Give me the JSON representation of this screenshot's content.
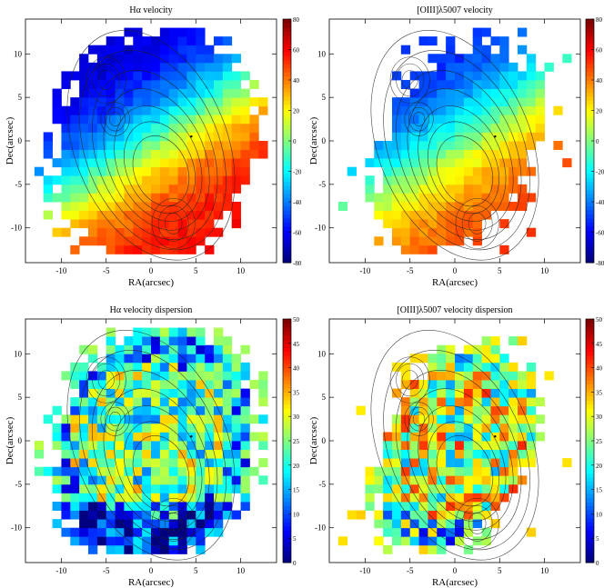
{
  "figure": {
    "description_panels": 4
  },
  "chart_data": [
    {
      "type": "heatmap",
      "title": "Hα velocity",
      "xlabel": "RA(arcsec)",
      "ylabel": "Dec(arcsec)",
      "xlim": [
        -14,
        14
      ],
      "ylim": [
        -14,
        14
      ],
      "xticks": [
        -10,
        -5,
        0,
        5,
        10
      ],
      "yticks": [
        -10,
        -5,
        0,
        5,
        10
      ],
      "colorbar": {
        "min": -80,
        "max": 80,
        "ticks": [
          -80,
          -60,
          -40,
          -20,
          0,
          20,
          40,
          60,
          80
        ]
      },
      "field": {
        "model": "rotation",
        "amplitude": 65,
        "coverage": "full"
      },
      "contours": true
    },
    {
      "type": "heatmap",
      "title": "[OIII]λ5007 velocity",
      "xlabel": "RA(arcsec)",
      "ylabel": "Dec(arcsec)",
      "xlim": [
        -14,
        14
      ],
      "ylim": [
        -14,
        14
      ],
      "xticks": [
        -10,
        -5,
        0,
        5,
        10
      ],
      "yticks": [
        -10,
        -5,
        0,
        5,
        10
      ],
      "colorbar": {
        "min": -80,
        "max": 80,
        "ticks": [
          -80,
          -60,
          -40,
          -20,
          0,
          20,
          40,
          60,
          80
        ]
      },
      "field": {
        "model": "rotation",
        "amplitude": 55,
        "coverage": "partial"
      },
      "contours": true
    },
    {
      "type": "heatmap",
      "title": "Hα velocity dispersion",
      "xlabel": "RA(arcsec)",
      "ylabel": "Dec(arcsec)",
      "xlim": [
        -14,
        14
      ],
      "ylim": [
        -14,
        14
      ],
      "xticks": [
        -10,
        -5,
        0,
        5,
        10
      ],
      "yticks": [
        -10,
        -5,
        0,
        5,
        10
      ],
      "colorbar": {
        "min": 0,
        "max": 50,
        "ticks": [
          0,
          5,
          10,
          15,
          20,
          25,
          30,
          35,
          40,
          45,
          50
        ]
      },
      "field": {
        "model": "dispersion",
        "mean": 24,
        "spread": 12,
        "coverage": "full"
      },
      "contours": true
    },
    {
      "type": "heatmap",
      "title": "[OIII]λ5007 velocity dispersion",
      "xlabel": "RA(arcsec)",
      "ylabel": "Dec(arcsec)",
      "xlim": [
        -14,
        14
      ],
      "ylim": [
        -14,
        14
      ],
      "xticks": [
        -10,
        -5,
        0,
        5,
        10
      ],
      "yticks": [
        -10,
        -5,
        0,
        5,
        10
      ],
      "colorbar": {
        "min": 0,
        "max": 50,
        "ticks": [
          0,
          5,
          10,
          15,
          20,
          25,
          30,
          35,
          40,
          45,
          50
        ]
      },
      "field": {
        "model": "dispersion",
        "mean": 28,
        "spread": 14,
        "coverage": "partial"
      },
      "contours": true
    }
  ]
}
